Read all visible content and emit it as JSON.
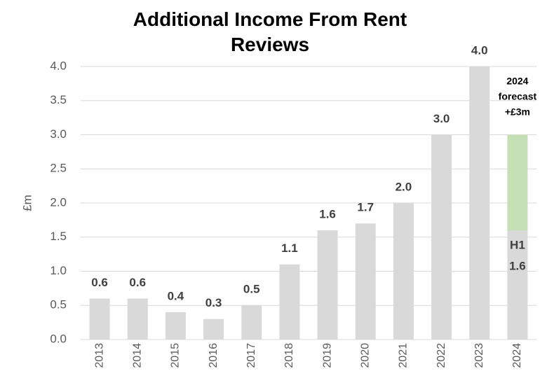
{
  "chart_data": {
    "type": "bar",
    "title": "Additional Income From Rent Reviews",
    "y_label": "£m",
    "categories": [
      "2013",
      "2014",
      "2015",
      "2016",
      "2017",
      "2018",
      "2019",
      "2020",
      "2021",
      "2022",
      "2023",
      "2024"
    ],
    "series": [
      {
        "color": "#d9d9d9",
        "values": [
          0.6,
          0.6,
          0.4,
          0.3,
          0.5,
          1.1,
          1.6,
          1.7,
          2.0,
          3.0,
          4.0,
          1.6
        ],
        "value_labels": [
          "0.6",
          "0.6",
          "0.4",
          "0.3",
          "0.5",
          "1.1",
          "1.6",
          "1.7",
          "2.0",
          "3.0",
          "4.0",
          "1.6"
        ]
      },
      {
        "color": "#c5e0b4",
        "values": [
          null,
          null,
          null,
          null,
          null,
          null,
          null,
          null,
          null,
          null,
          null,
          1.4
        ]
      }
    ],
    "h1_label": "H1",
    "forecast_note": [
      "2024",
      "forecast",
      "+£3m"
    ],
    "ylim": [
      0,
      4
    ],
    "yticks": [
      {
        "value": 0,
        "label": "0.0"
      },
      {
        "value": 0.5,
        "label": "0.5"
      },
      {
        "value": 1,
        "label": "1.0"
      },
      {
        "value": 1.5,
        "label": "1.5"
      },
      {
        "value": 2,
        "label": "2.0"
      },
      {
        "value": 2.5,
        "label": "2.5"
      },
      {
        "value": 3,
        "label": "3.0"
      },
      {
        "value": 3.5,
        "label": "3.5"
      },
      {
        "value": 4,
        "label": "4.0"
      }
    ],
    "grid": true
  }
}
